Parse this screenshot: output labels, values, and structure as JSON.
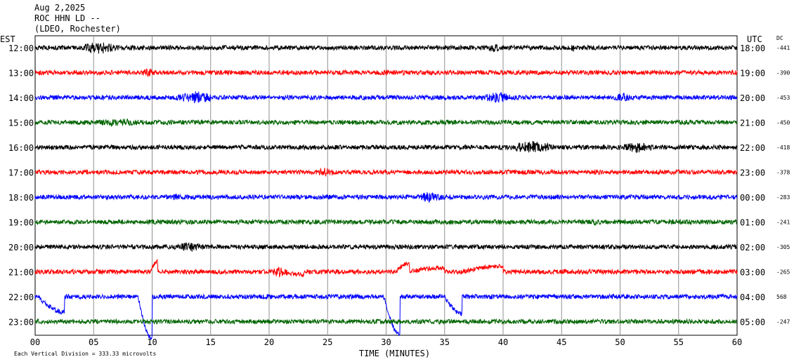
{
  "header": {
    "date": "Aug 2,2025",
    "station": "ROC HHN LD --",
    "network": "(LDEO, Rochester)"
  },
  "labels": {
    "left_zone": "EST",
    "right_zone": "UTC",
    "dc": "DC",
    "xlabel": "TIME (MINUTES)",
    "scale_note": "Each Vertical Division =  333.33 microvolts"
  },
  "colors": [
    "#000000",
    "#ff0000",
    "#0000ff",
    "#006400"
  ],
  "chart_data": {
    "type": "line",
    "x": [
      0,
      5,
      10,
      15,
      20,
      25,
      30,
      35,
      40,
      45,
      50,
      55,
      60
    ],
    "x_tick_labels": [
      "00",
      "05",
      "10",
      "15",
      "20",
      "25",
      "30",
      "35",
      "40",
      "45",
      "50",
      "55",
      "60"
    ],
    "xlim": [
      0,
      60
    ],
    "grid": true,
    "rows": [
      {
        "est": "12:00",
        "utc": "18:00",
        "dc": "-441",
        "color": "#000000"
      },
      {
        "est": "13:00",
        "utc": "19:00",
        "dc": "-390",
        "color": "#ff0000"
      },
      {
        "est": "14:00",
        "utc": "20:00",
        "dc": "-453",
        "color": "#0000ff"
      },
      {
        "est": "15:00",
        "utc": "21:00",
        "dc": "-450",
        "color": "#006400"
      },
      {
        "est": "16:00",
        "utc": "22:00",
        "dc": "-418",
        "color": "#000000"
      },
      {
        "est": "17:00",
        "utc": "23:00",
        "dc": "-378",
        "color": "#ff0000"
      },
      {
        "est": "18:00",
        "utc": "00:00",
        "dc": "-283",
        "color": "#0000ff"
      },
      {
        "est": "19:00",
        "utc": "01:00",
        "dc": "-241",
        "color": "#006400"
      },
      {
        "est": "20:00",
        "utc": "02:00",
        "dc": "-305",
        "color": "#000000"
      },
      {
        "est": "21:00",
        "utc": "03:00",
        "dc": "-265",
        "color": "#ff0000"
      },
      {
        "est": "22:00",
        "utc": "04:00",
        "dc": "568",
        "color": "#0000ff"
      },
      {
        "est": "23:00",
        "utc": "05:00",
        "dc": "-247",
        "color": "#006400"
      }
    ]
  }
}
